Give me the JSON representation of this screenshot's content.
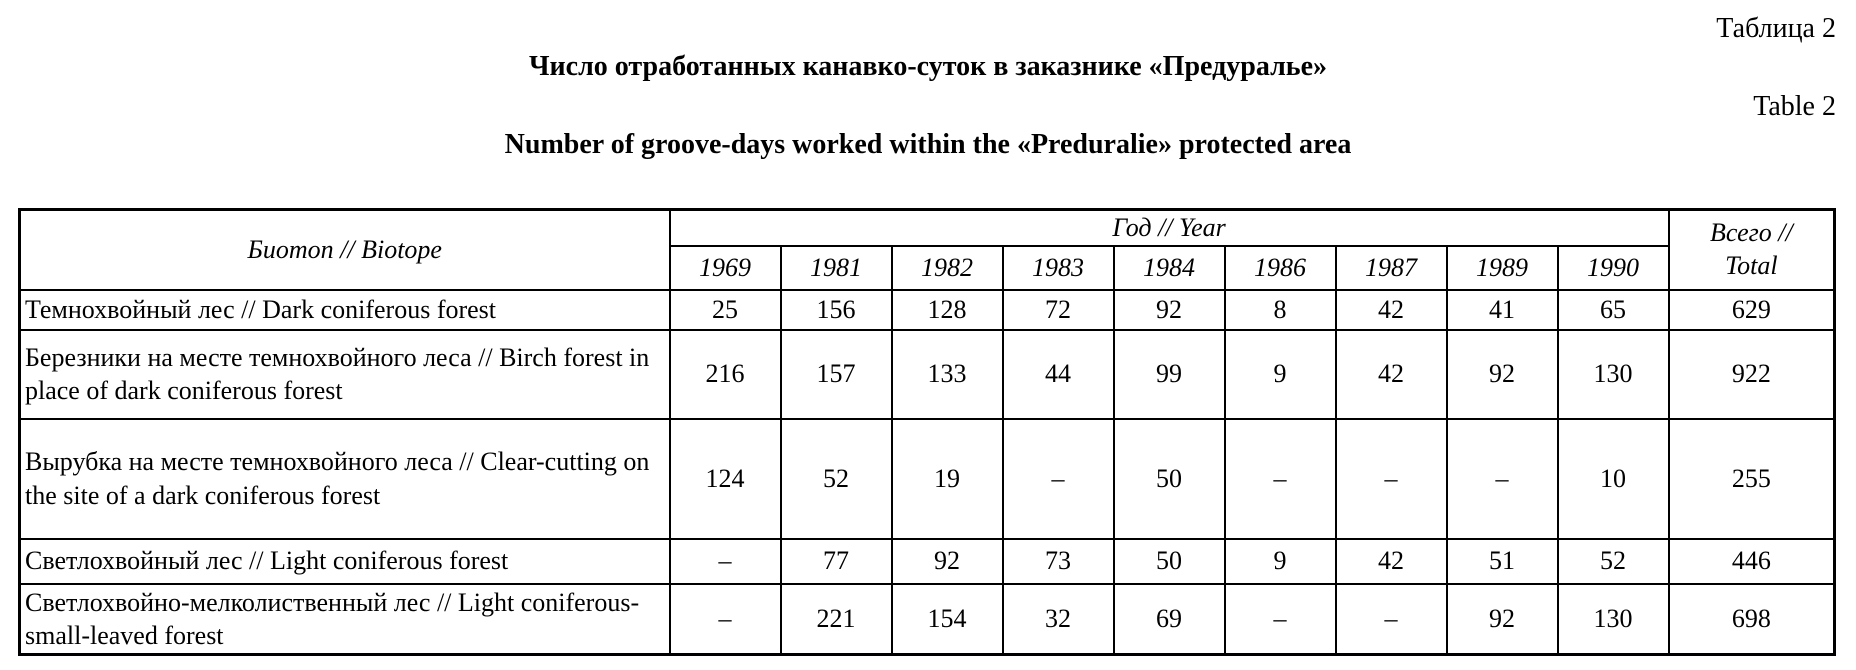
{
  "page": {
    "table_label_ru": "Таблица 2",
    "title_ru": "Число отработанных канавко-суток в заказнике «Предуралье»",
    "table_label_en": "Table 2",
    "title_en": "Number of groove-days worked within the «Preduralie» protected area"
  },
  "table": {
    "biotope_header": "Биотоп // Biotope",
    "year_header": "Год // Year",
    "total_header_line1": "Всего //",
    "total_header_line2": "Total",
    "years": [
      "1969",
      "1981",
      "1982",
      "1983",
      "1984",
      "1986",
      "1987",
      "1989",
      "1990"
    ],
    "rows": [
      {
        "label": "Темнохвойный лес // Dark coniferous forest",
        "values": [
          "25",
          "156",
          "128",
          "72",
          "92",
          "8",
          "42",
          "41",
          "65"
        ],
        "total": "629"
      },
      {
        "label": "Березники на месте темнохвойного леса // Birch forest in place of dark coniferous forest",
        "values": [
          "216",
          "157",
          "133",
          "44",
          "99",
          "9",
          "42",
          "92",
          "130"
        ],
        "total": "922"
      },
      {
        "label": "Вырубка на месте темнохвойного леса // Clear-cutting on the site of a dark coniferous forest",
        "values": [
          "124",
          "52",
          "19",
          "–",
          "50",
          "–",
          "–",
          "–",
          "10"
        ],
        "total": "255"
      },
      {
        "label": "Светлохвойный лес // Light coniferous forest",
        "values": [
          "–",
          "77",
          "92",
          "73",
          "50",
          "9",
          "42",
          "51",
          "52"
        ],
        "total": "446"
      },
      {
        "label": "Светлохвойно-мелколиственный лес // Light coniferous-small-leaved forest",
        "values": [
          "–",
          "221",
          "154",
          "32",
          "69",
          "–",
          "–",
          "92",
          "130"
        ],
        "total": "698"
      }
    ]
  }
}
